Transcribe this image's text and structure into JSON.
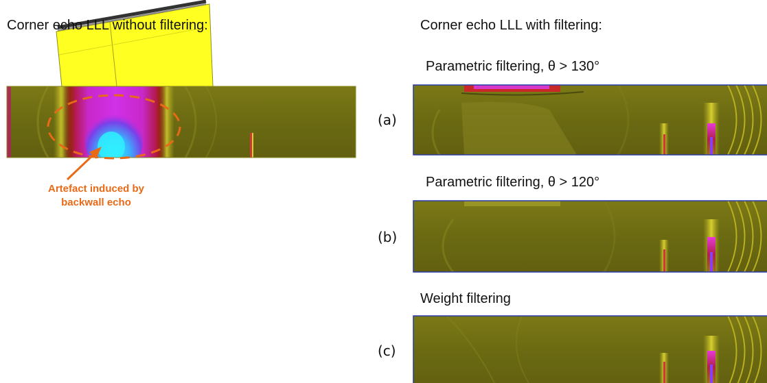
{
  "left": {
    "title": "Corner echo LLL without filtering:",
    "annotation_line1": "Artefact induced by",
    "annotation_line2": "backwall echo"
  },
  "right": {
    "title": "Corner echo LLL with filtering:",
    "panels": [
      {
        "letter": "(a)",
        "caption": "Parametric filtering, θ > 130°"
      },
      {
        "letter": "(b)",
        "caption": "Parametric filtering, θ > 120°"
      },
      {
        "letter": "(c)",
        "caption": "Weight filtering"
      }
    ]
  },
  "colors": {
    "background_field": "#6f6d12",
    "probe_wedge": "#ffff22",
    "artefact_outline": "#e86a17",
    "panel_border": "#2a3aa8"
  }
}
